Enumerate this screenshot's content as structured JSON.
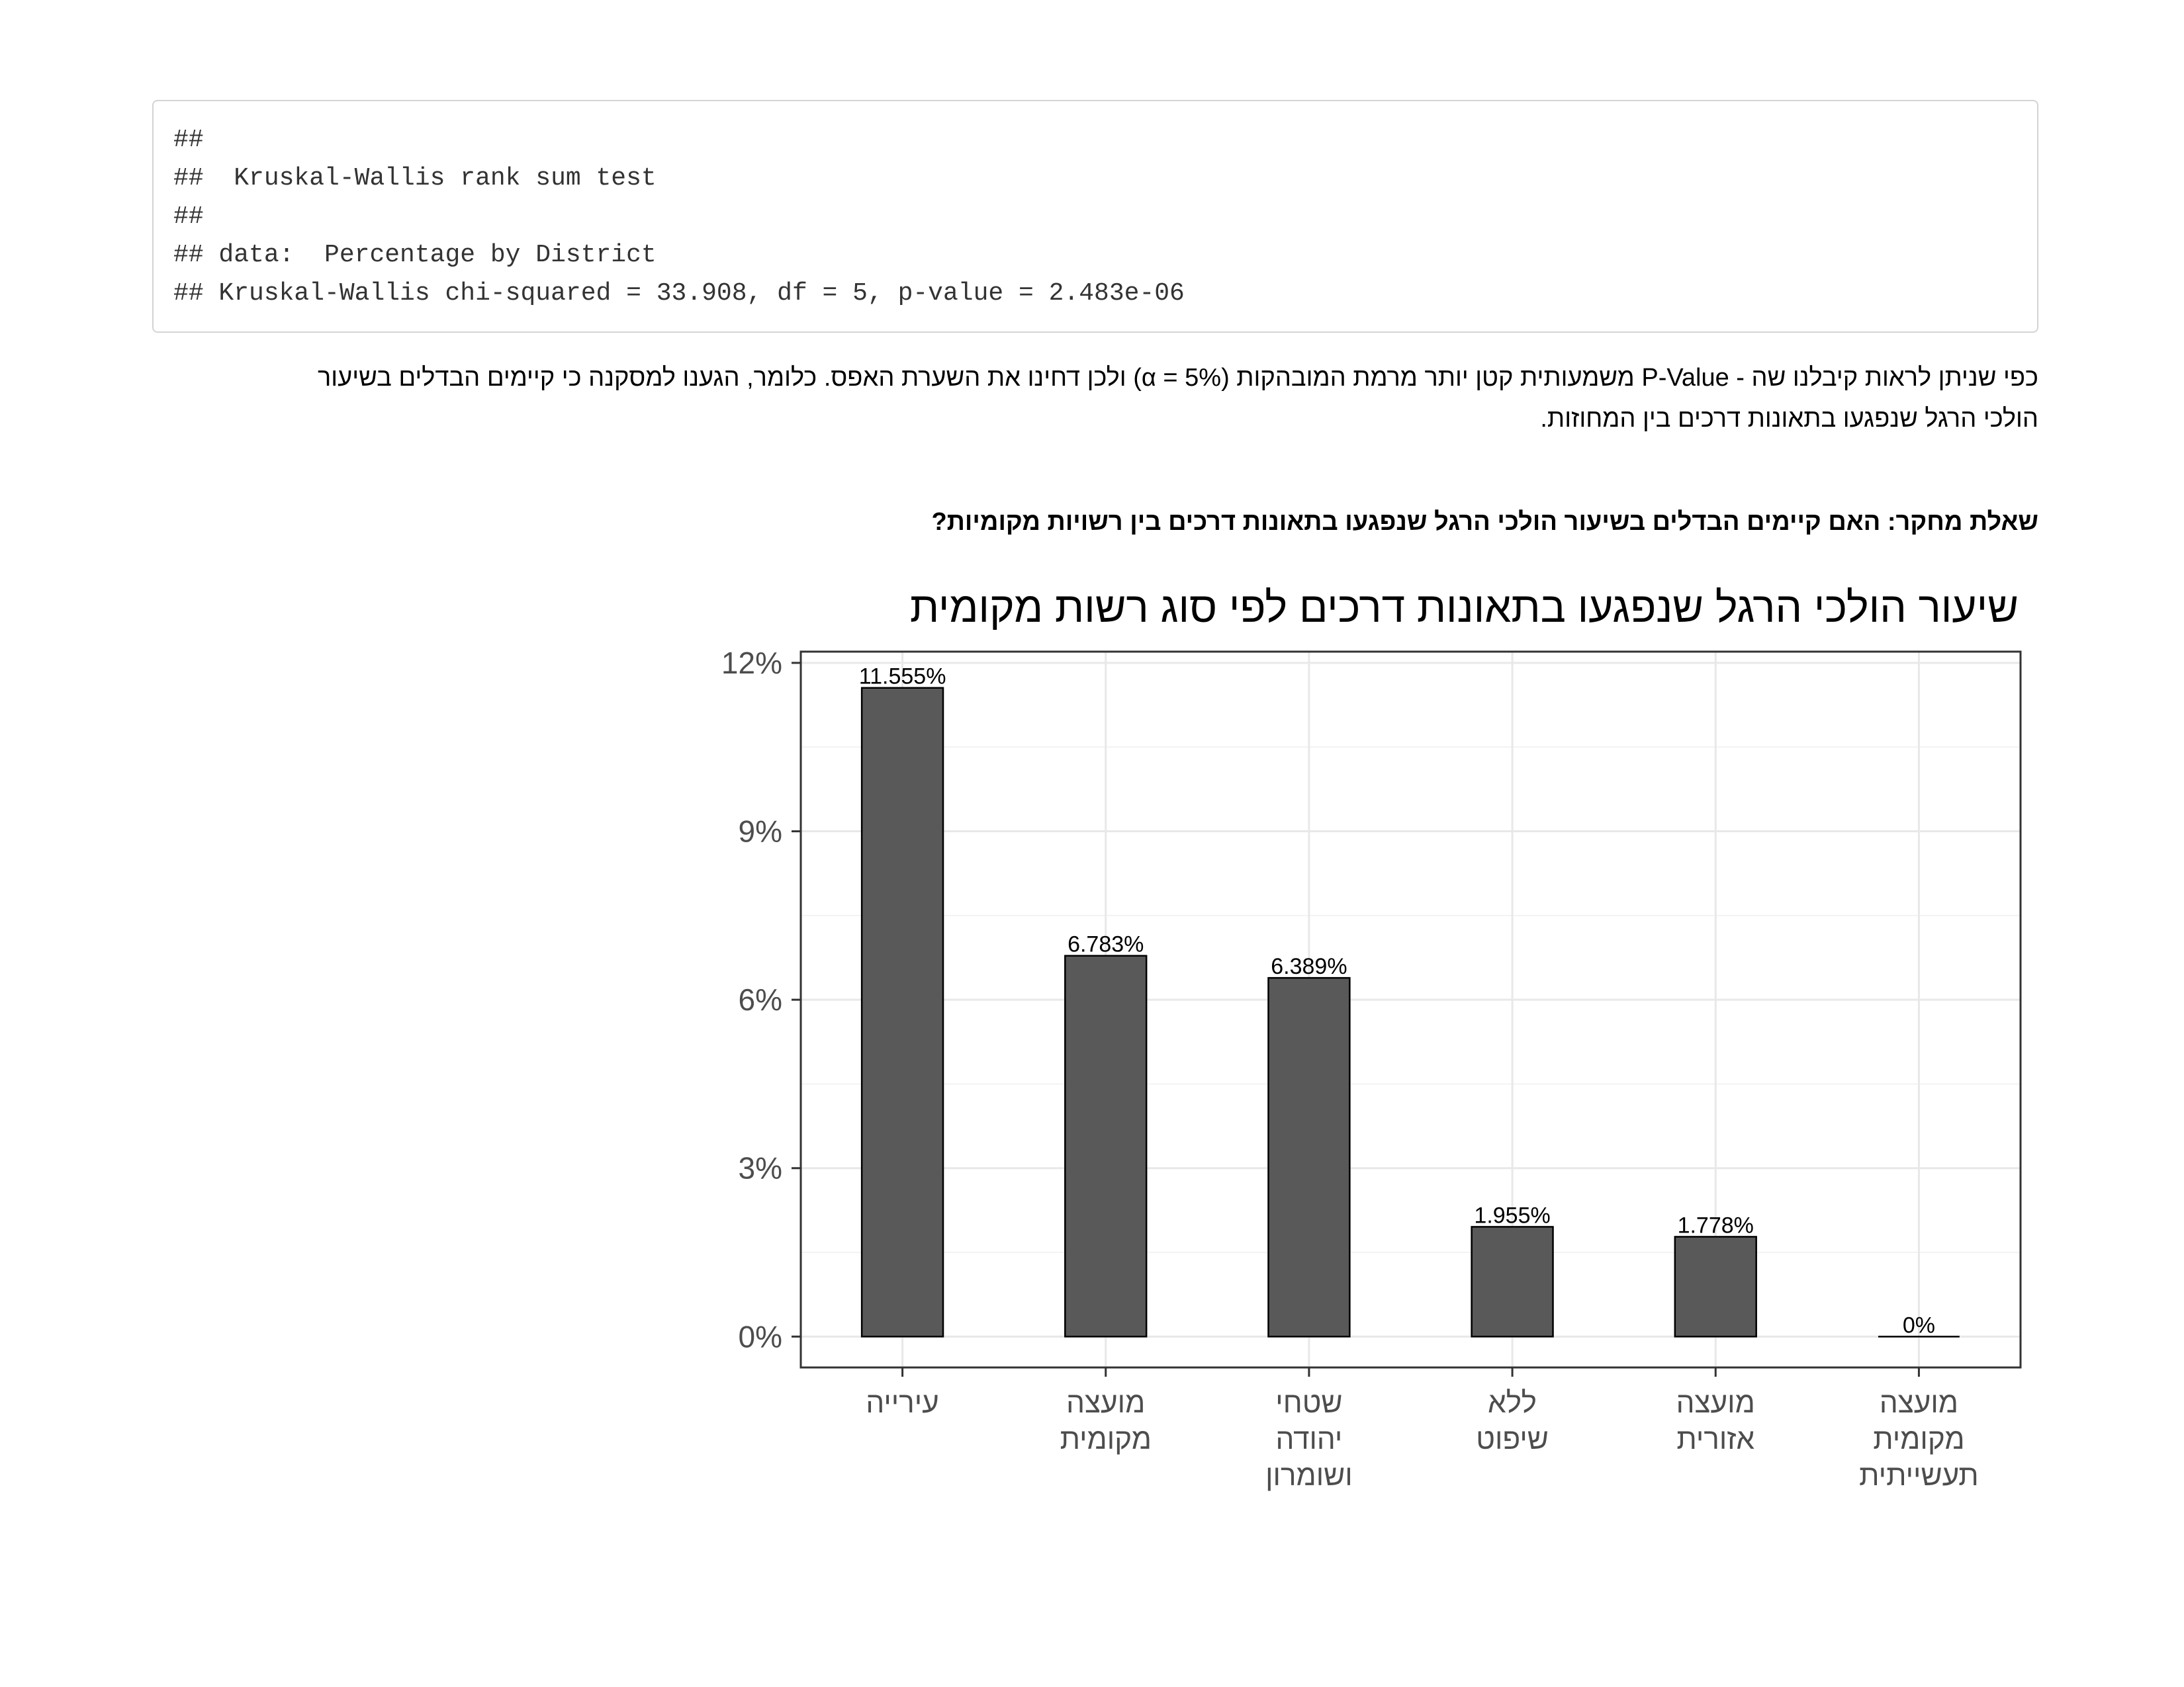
{
  "code_output": {
    "lines": [
      "##",
      "##  Kruskal-Wallis rank sum test",
      "##",
      "## data:  Percentage by District",
      "## Kruskal-Wallis chi-squared = 33.908, df = 5, p-value = 2.483e-06"
    ]
  },
  "conclusion": {
    "line1": "כפי שניתן לראות קיבלנו שה - P-Value משמעותית קטן יותר מרמת המובהקות (α = 5%) ולכן דחינו את השערת האפס. כלומר, הגענו למסקנה כי קיימים הבדלים בשיעור",
    "line2": "הולכי הרגל שנפגעו בתאונות דרכים בין המחוזות."
  },
  "research_question": "שאלת מחקר: האם קיימים הבדלים בשיעור הולכי הרגל שנפגעו בתאונות דרכים בין רשויות מקומיות?",
  "chart_data": {
    "type": "bar",
    "title": "שיעור הולכי הרגל שנפגעו בתאונות דרכים לפי סוג רשות מקומית",
    "xlabel": "",
    "ylabel": "",
    "categories": [
      [
        "עירייה"
      ],
      [
        "מועצה",
        "מקומית"
      ],
      [
        "שטחי",
        "יהודה",
        "ושומרון"
      ],
      [
        "ללא",
        "שיפוט"
      ],
      [
        "מועצה",
        "אזורית"
      ],
      [
        "מועצה",
        "מקומית",
        "תעשייתית"
      ]
    ],
    "values": [
      11.555,
      6.783,
      6.389,
      1.955,
      1.778,
      0
    ],
    "value_labels": [
      "11.555%",
      "6.783%",
      "6.389%",
      "1.955%",
      "1.778%",
      "0%"
    ],
    "ylim": [
      -0.55,
      12.2
    ],
    "y_ticks": [
      0,
      3,
      6,
      9,
      12
    ],
    "y_tick_labels": [
      "0%",
      "3%",
      "6%",
      "9%",
      "12%"
    ],
    "grid": true,
    "legend": "none",
    "colors": {
      "bar": "#595959",
      "bar_outline": "#000000",
      "grid_major": "#e8e8e8",
      "grid_minor": "#f3f3f3",
      "panel_border": "#333333",
      "tick_text": "#4d4d4d"
    }
  }
}
